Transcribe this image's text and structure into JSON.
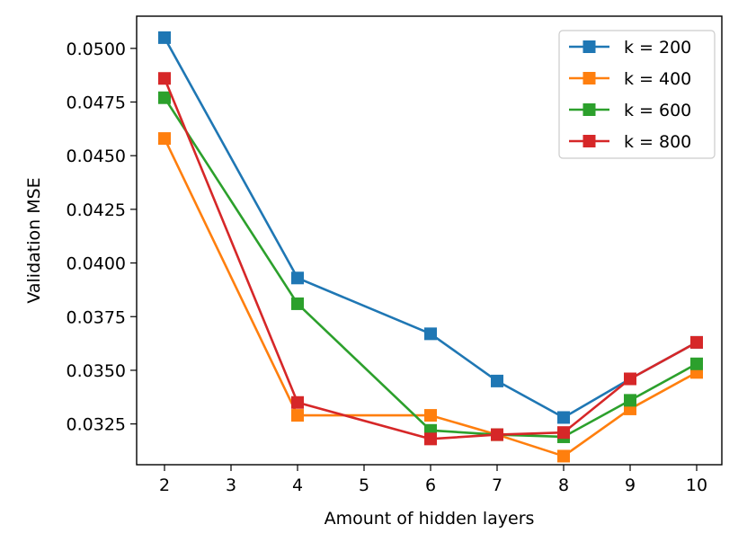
{
  "chart_data": {
    "type": "line",
    "title": "",
    "xlabel": "Amount of hidden layers",
    "ylabel": "Validation MSE",
    "x": [
      2,
      4,
      6,
      7,
      8,
      9,
      10
    ],
    "xticks": [
      "2",
      "3",
      "4",
      "5",
      "6",
      "7",
      "8",
      "9",
      "10"
    ],
    "yticks": [
      "0.0325",
      "0.0350",
      "0.0375",
      "0.0400",
      "0.0425",
      "0.0450",
      "0.0475",
      "0.0500"
    ],
    "ylim": [
      0.0306,
      0.0515
    ],
    "grid": false,
    "legend_position": "top-right",
    "series": [
      {
        "name": "k = 200",
        "color": "#1f77b4",
        "marker": "square",
        "values": [
          0.0505,
          0.0393,
          0.0367,
          0.0345,
          0.0328,
          0.0346,
          0.0363
        ]
      },
      {
        "name": "k = 400",
        "color": "#ff7f0e",
        "marker": "square",
        "values": [
          0.0458,
          0.0329,
          0.0329,
          0.032,
          0.031,
          0.0332,
          0.0349
        ]
      },
      {
        "name": "k = 600",
        "color": "#2ca02c",
        "marker": "square",
        "values": [
          0.0477,
          0.0381,
          0.0322,
          0.032,
          0.0319,
          0.0336,
          0.0353
        ]
      },
      {
        "name": "k = 800",
        "color": "#d62728",
        "marker": "square",
        "values": [
          0.0486,
          0.0335,
          0.0318,
          0.032,
          0.0321,
          0.0346,
          0.0363
        ]
      }
    ]
  }
}
